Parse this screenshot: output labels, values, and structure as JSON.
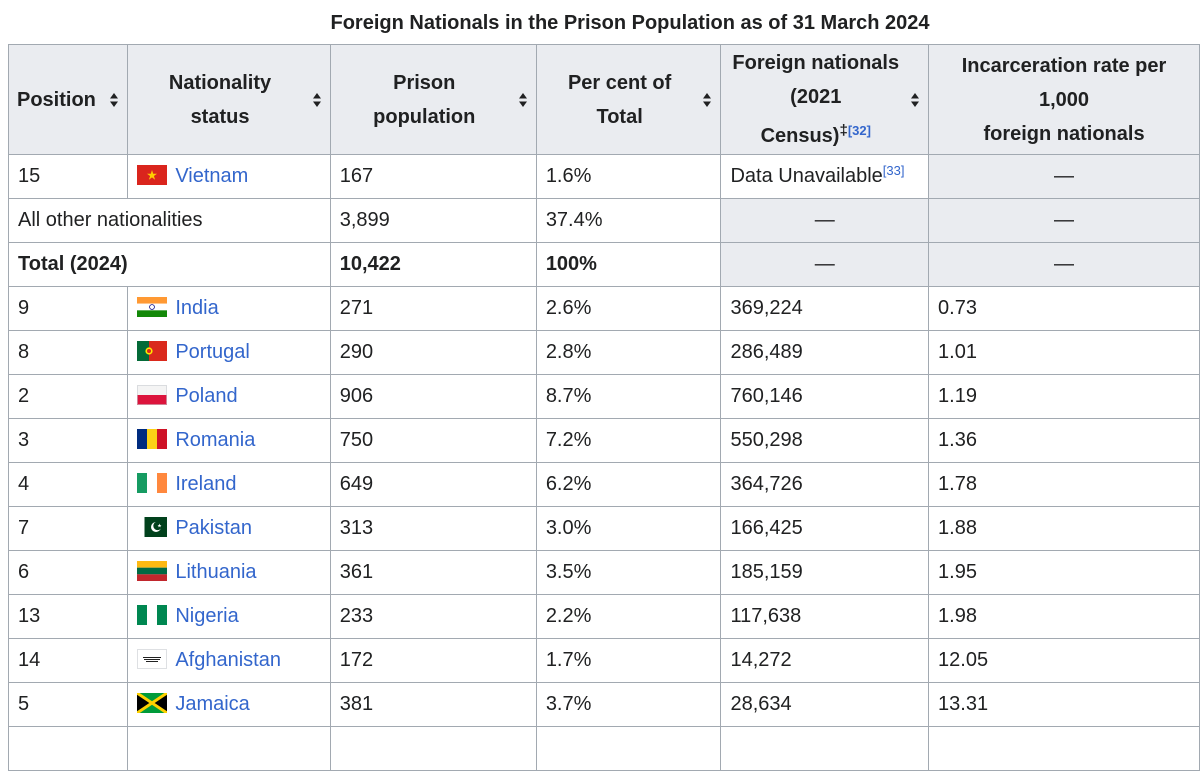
{
  "caption": "Foreign Nationals in the Prison Population as of 31 March 2024",
  "columns": {
    "position": "Position",
    "nationality": [
      "Nationality",
      "status"
    ],
    "prison_population": [
      "Prison",
      "population"
    ],
    "per_cent": [
      "Per cent of",
      "Total"
    ],
    "foreign_nationals": [
      "Foreign nationals",
      "(2021",
      "Census)"
    ],
    "foreign_nationals_mark": "‡",
    "foreign_nationals_ref": "[32]",
    "incarceration_rate": [
      "Incarceration rate per",
      "1,000",
      "foreign nationals"
    ]
  },
  "summary_rows": {
    "vietnam": {
      "position": "15",
      "nationality": "Vietnam",
      "prison_population": "167",
      "per_cent": "1.6%",
      "foreign_nationals": "Data Unavailable",
      "foreign_nationals_ref": "[33]",
      "rate": "—"
    },
    "other": {
      "label": "All other nationalities",
      "prison_population": "3,899",
      "per_cent": "37.4%",
      "foreign_nationals": "—",
      "rate": "—"
    },
    "total": {
      "label": "Total (2024)",
      "prison_population": "10,422",
      "per_cent": "100%",
      "foreign_nationals": "—",
      "rate": "—"
    }
  },
  "rows": [
    {
      "position": "9",
      "flag": "india-flag",
      "nationality": "India",
      "prison_population": "271",
      "per_cent": "2.6%",
      "foreign_nationals": "369,224",
      "rate": "0.73"
    },
    {
      "position": "8",
      "flag": "portugal-flag",
      "nationality": "Portugal",
      "prison_population": "290",
      "per_cent": "2.8%",
      "foreign_nationals": "286,489",
      "rate": "1.01"
    },
    {
      "position": "2",
      "flag": "poland-flag",
      "nationality": "Poland",
      "prison_population": "906",
      "per_cent": "8.7%",
      "foreign_nationals": "760,146",
      "rate": "1.19"
    },
    {
      "position": "3",
      "flag": "romania-flag",
      "nationality": "Romania",
      "prison_population": "750",
      "per_cent": "7.2%",
      "foreign_nationals": "550,298",
      "rate": "1.36"
    },
    {
      "position": "4",
      "flag": "ireland-flag",
      "nationality": "Ireland",
      "prison_population": "649",
      "per_cent": "6.2%",
      "foreign_nationals": "364,726",
      "rate": "1.78"
    },
    {
      "position": "7",
      "flag": "pakistan-flag",
      "nationality": "Pakistan",
      "prison_population": "313",
      "per_cent": "3.0%",
      "foreign_nationals": "166,425",
      "rate": "1.88"
    },
    {
      "position": "6",
      "flag": "lithuania-flag",
      "nationality": "Lithuania",
      "prison_population": "361",
      "per_cent": "3.5%",
      "foreign_nationals": "185,159",
      "rate": "1.95"
    },
    {
      "position": "13",
      "flag": "nigeria-flag",
      "nationality": "Nigeria",
      "prison_population": "233",
      "per_cent": "2.2%",
      "foreign_nationals": "117,638",
      "rate": "1.98"
    },
    {
      "position": "14",
      "flag": "afghanistan-flag",
      "nationality": "Afghanistan",
      "prison_population": "172",
      "per_cent": "1.7%",
      "foreign_nationals": "14,272",
      "rate": "12.05"
    },
    {
      "position": "5",
      "flag": "jamaica-flag",
      "nationality": "Jamaica",
      "prison_population": "381",
      "per_cent": "3.7%",
      "foreign_nationals": "28,634",
      "rate": "13.31"
    }
  ]
}
